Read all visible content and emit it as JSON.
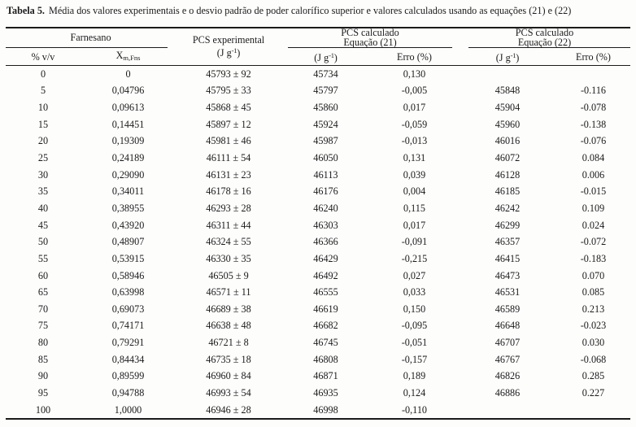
{
  "caption": {
    "label": "Tabela 5.",
    "text": "Média dos valores experimentais e o desvio padrão de poder calorífico superior e valores calculados usando as equações (21) e (22)"
  },
  "table": {
    "header": {
      "farnesano": "Farnesano",
      "pcs_experimental": "PCS experimental",
      "pcs_calculado": "PCS calculado",
      "equacao_21": "Equação (21)",
      "equacao_22": "Equação (22)",
      "pct_vv": "% v/v",
      "x_symbol": "X",
      "x_subscript": "m,Fns",
      "unit_open": "(J g",
      "unit_sup": "-1",
      "unit_close": ")",
      "erro": "Erro (%)"
    },
    "rows": [
      [
        "0",
        "0",
        "45793 ± 92",
        "45734",
        "0,130",
        "",
        ""
      ],
      [
        "5",
        "0,04796",
        "45795 ± 33",
        "45797",
        "-0,005",
        "45848",
        "-0.116"
      ],
      [
        "10",
        "0,09613",
        "45868 ± 45",
        "45860",
        "0,017",
        "45904",
        "-0.078"
      ],
      [
        "15",
        "0,14451",
        "45897 ± 12",
        "45924",
        "-0,059",
        "45960",
        "-0.138"
      ],
      [
        "20",
        "0,19309",
        "45981 ± 46",
        "45987",
        "-0,013",
        "46016",
        "-0.076"
      ],
      [
        "25",
        "0,24189",
        "46111 ± 54",
        "46050",
        "0,131",
        "46072",
        "0.084"
      ],
      [
        "30",
        "0,29090",
        "46131 ± 23",
        "46113",
        "0,039",
        "46128",
        "0.006"
      ],
      [
        "35",
        "0,34011",
        "46178 ± 16",
        "46176",
        "0,004",
        "46185",
        "-0.015"
      ],
      [
        "40",
        "0,38955",
        "46293 ± 28",
        "46240",
        "0,115",
        "46242",
        "0.109"
      ],
      [
        "45",
        "0,43920",
        "46311 ± 44",
        "46303",
        "0,017",
        "46299",
        "0.024"
      ],
      [
        "50",
        "0,48907",
        "46324 ± 55",
        "46366",
        "-0,091",
        "46357",
        "-0.072"
      ],
      [
        "55",
        "0,53915",
        "46330 ± 35",
        "46429",
        "-0,215",
        "46415",
        "-0.183"
      ],
      [
        "60",
        "0,58946",
        "46505 ± 9",
        "46492",
        "0,027",
        "46473",
        "0.070"
      ],
      [
        "65",
        "0,63998",
        "46571 ± 11",
        "46555",
        "0,033",
        "46531",
        "0.085"
      ],
      [
        "70",
        "0,69073",
        "46689 ± 38",
        "46619",
        "0,150",
        "46589",
        "0.213"
      ],
      [
        "75",
        "0,74171",
        "46638 ± 48",
        "46682",
        "-0,095",
        "46648",
        "-0.023"
      ],
      [
        "80",
        "0,79291",
        "46721 ± 8",
        "46745",
        "-0,051",
        "46707",
        "0.030"
      ],
      [
        "85",
        "0,84434",
        "46735 ± 18",
        "46808",
        "-0,157",
        "46767",
        "-0.068"
      ],
      [
        "90",
        "0,89599",
        "46960 ± 84",
        "46871",
        "0,189",
        "46826",
        "0.285"
      ],
      [
        "95",
        "0,94788",
        "46993 ± 54",
        "46935",
        "0,124",
        "46886",
        "0.227"
      ],
      [
        "100",
        "1,0000",
        "46946 ± 28",
        "46998",
        "-0,110",
        "",
        ""
      ]
    ]
  },
  "colors": {
    "text": "#1b1b1b",
    "rule": "#1b1b1b",
    "background": "#fdfdfc"
  }
}
